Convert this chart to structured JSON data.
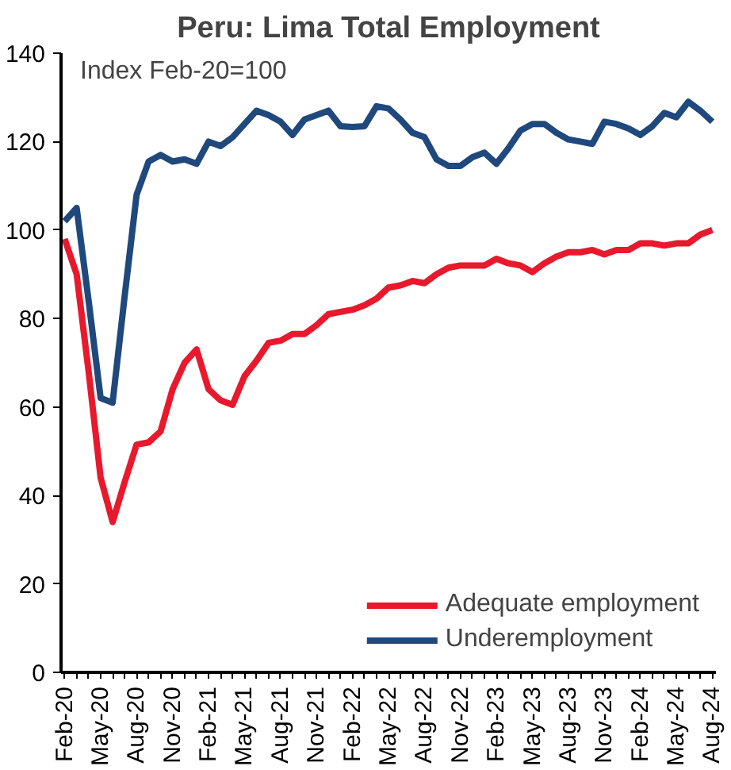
{
  "chart_data": {
    "type": "line",
    "title": "Peru: Lima Total Employment",
    "annotations": [
      "Index Feb-20=100"
    ],
    "categories": [
      "Feb-20",
      null,
      null,
      "May-20",
      null,
      null,
      "Aug-20",
      null,
      null,
      "Nov-20",
      null,
      null,
      "Feb-21",
      null,
      null,
      "May-21",
      null,
      null,
      "Aug-21",
      null,
      null,
      "Nov-21",
      null,
      null,
      "Feb-22",
      null,
      null,
      "May-22",
      null,
      null,
      "Aug-22",
      null,
      null,
      "Nov-22",
      null,
      null,
      "Feb-23",
      null,
      null,
      "May-23",
      null,
      null,
      "Aug-23",
      null,
      null,
      "Nov-23",
      null,
      null,
      "Feb-24",
      null,
      null,
      "May-24",
      null,
      null,
      "Aug-24"
    ],
    "series": [
      {
        "name": "Adequate employment",
        "color": "#e8192c",
        "values": [
          98,
          90,
          68,
          44,
          34,
          43,
          51.5,
          52,
          54.5,
          64,
          70,
          73,
          64,
          61.5,
          60.5,
          67,
          70.5,
          74.5,
          75,
          76.5,
          76.5,
          78.5,
          81,
          81.5,
          82,
          83,
          84.5,
          87,
          87.5,
          88.5,
          88,
          90,
          91.5,
          92,
          92,
          92,
          93.5,
          92.5,
          92,
          90.5,
          92.5,
          94,
          95,
          95,
          95.5,
          94.5,
          95.5,
          95.5,
          97,
          97,
          96.5,
          97,
          97,
          99,
          100
        ]
      },
      {
        "name": "Underemployment",
        "color": "#1f497d",
        "values": [
          102,
          105,
          84,
          62,
          61,
          85,
          108,
          115.5,
          117,
          115.5,
          116,
          115,
          120,
          119,
          121,
          124,
          127,
          126,
          124.5,
          121.5,
          125,
          126,
          127,
          123.5,
          123.3,
          123.5,
          128,
          127.5,
          125,
          122,
          121,
          116,
          114.5,
          114.5,
          116.5,
          117.5,
          115,
          118.5,
          122.5,
          124,
          124,
          122,
          120.5,
          120,
          119.5,
          124.5,
          124,
          123,
          121.5,
          123.5,
          126.5,
          125.5,
          129,
          127,
          124.5
        ]
      }
    ],
    "ylim": [
      0,
      140
    ],
    "yticks": [
      0,
      20,
      40,
      60,
      80,
      100,
      120,
      140
    ],
    "grid": false,
    "legend": "bottom right",
    "marker": "none",
    "line_style": "solid"
  }
}
